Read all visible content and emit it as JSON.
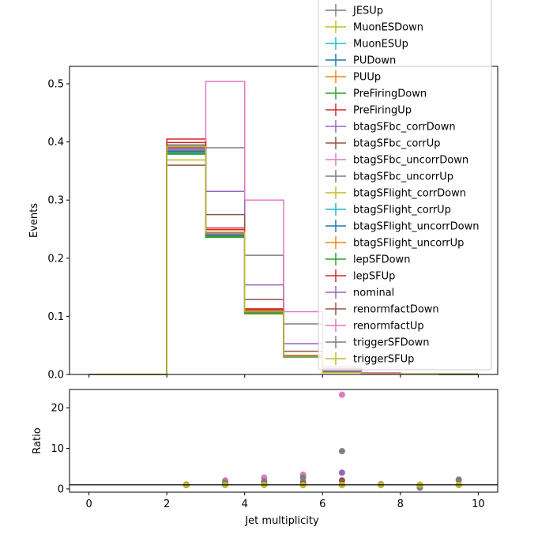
{
  "chart_data": [
    {
      "type": "histogram-step",
      "ylabel": "Events",
      "xlim": [
        -0.5,
        10.5
      ],
      "ylim": [
        0,
        0.53
      ],
      "yticks": [
        "0.0",
        "0.1",
        "0.2",
        "0.3",
        "0.4",
        "0.5"
      ],
      "legend": {
        "placement": "top-right"
      },
      "bin_edges": [
        0,
        1,
        2,
        3,
        4,
        5,
        6,
        7,
        8,
        9,
        10
      ],
      "series": [
        {
          "name": "JESUp",
          "color": "#7f7f7f",
          "values": [
            0,
            0,
            0.395,
            0.39,
            0.205,
            0.087,
            0.01,
            0.003,
            0.001,
            0.001
          ]
        },
        {
          "name": "MuonESDown",
          "color": "#bcbd22",
          "values": [
            0,
            0,
            0.382,
            0.238,
            0.106,
            0.031,
            0.003,
            0.001,
            0.0005,
            0.0002
          ]
        },
        {
          "name": "MuonESUp",
          "color": "#17becf",
          "values": [
            0,
            0,
            0.382,
            0.239,
            0.106,
            0.031,
            0.003,
            0.001,
            0.0005,
            0.0002
          ]
        },
        {
          "name": "PUDown",
          "color": "#1f77b4",
          "values": [
            0,
            0,
            0.383,
            0.239,
            0.107,
            0.031,
            0.003,
            0.001,
            0.0005,
            0.0002
          ]
        },
        {
          "name": "PUUp",
          "color": "#ff7f0e",
          "values": [
            0,
            0,
            0.386,
            0.241,
            0.107,
            0.031,
            0.003,
            0.001,
            0.0005,
            0.0002
          ]
        },
        {
          "name": "PreFiringDown",
          "color": "#2ca02c",
          "values": [
            0,
            0,
            0.38,
            0.237,
            0.105,
            0.03,
            0.003,
            0.001,
            0.0005,
            0.0002
          ]
        },
        {
          "name": "PreFiringUp",
          "color": "#d62728",
          "values": [
            0,
            0,
            0.405,
            0.252,
            0.113,
            0.033,
            0.003,
            0.001,
            0.0005,
            0.0002
          ]
        },
        {
          "name": "btagSFbc_corrDown",
          "color": "#9467bd",
          "values": [
            0,
            0,
            0.384,
            0.315,
            0.154,
            0.053,
            0.006,
            0.002,
            0.0005,
            0.0002
          ]
        },
        {
          "name": "btagSFbc_corrUp",
          "color": "#8c564b",
          "values": [
            0,
            0,
            0.36,
            0.275,
            0.129,
            0.04,
            0.004,
            0.001,
            0.0005,
            0.0002
          ]
        },
        {
          "name": "btagSFbc_uncorrDown",
          "color": "#e377c2",
          "values": [
            0,
            0,
            0.39,
            0.504,
            0.3,
            0.108,
            0.013,
            0.003,
            0.001,
            0.0002
          ]
        },
        {
          "name": "btagSFbc_uncorrUp",
          "color": "#7f7f7f",
          "values": [
            0,
            0,
            0.394,
            0.244,
            0.109,
            0.032,
            0.003,
            0.001,
            0.0005,
            0.0002
          ]
        },
        {
          "name": "btagSFlight_corrDown",
          "color": "#bcbd22",
          "values": [
            0,
            0,
            0.369,
            0.236,
            0.104,
            0.03,
            0.003,
            0.001,
            0.0005,
            0.0002
          ]
        },
        {
          "name": "btagSFlight_corrUp",
          "color": "#17becf",
          "values": [
            0,
            0,
            0.385,
            0.24,
            0.107,
            0.031,
            0.003,
            0.001,
            0.0005,
            0.0002
          ]
        },
        {
          "name": "btagSFlight_uncorrDown",
          "color": "#1f77b4",
          "values": [
            0,
            0,
            0.384,
            0.239,
            0.107,
            0.031,
            0.003,
            0.001,
            0.0005,
            0.0002
          ]
        },
        {
          "name": "btagSFlight_uncorrUp",
          "color": "#ff7f0e",
          "values": [
            0,
            0,
            0.386,
            0.241,
            0.108,
            0.031,
            0.003,
            0.001,
            0.0005,
            0.0002
          ]
        },
        {
          "name": "lepSFDown",
          "color": "#2ca02c",
          "values": [
            0,
            0,
            0.379,
            0.236,
            0.105,
            0.03,
            0.003,
            0.001,
            0.0005,
            0.0002
          ]
        },
        {
          "name": "lepSFUp",
          "color": "#d62728",
          "values": [
            0,
            0,
            0.399,
            0.249,
            0.111,
            0.032,
            0.003,
            0.001,
            0.0005,
            0.0002
          ]
        },
        {
          "name": "nominal",
          "color": "#9467bd",
          "values": [
            0,
            0,
            0.389,
            0.243,
            0.108,
            0.031,
            0.003,
            0.001,
            0.0005,
            0.0002
          ]
        },
        {
          "name": "renormfactDown",
          "color": "#8c564b",
          "values": [
            0,
            0,
            0.391,
            0.244,
            0.109,
            0.031,
            0.003,
            0.001,
            0.0005,
            0.0002
          ]
        },
        {
          "name": "renormfactUp",
          "color": "#e377c2",
          "values": [
            0,
            0,
            0.387,
            0.242,
            0.108,
            0.031,
            0.003,
            0.001,
            0.0005,
            0.0002
          ]
        },
        {
          "name": "triggerSFDown",
          "color": "#7f7f7f",
          "values": [
            0,
            0,
            0.386,
            0.241,
            0.107,
            0.031,
            0.003,
            0.001,
            0.0005,
            0.0002
          ]
        },
        {
          "name": "triggerSFUp",
          "color": "#bcbd22",
          "values": [
            0,
            0,
            0.392,
            0.245,
            0.109,
            0.032,
            0.003,
            0.001,
            0.0005,
            0.0002
          ]
        }
      ]
    },
    {
      "type": "scatter",
      "xlabel": "Jet multiplicity",
      "ylabel": "Ratio",
      "xlim": [
        -0.5,
        10.5
      ],
      "ylim": [
        -0.8,
        24.5
      ],
      "xticks": [
        "0",
        "2",
        "4",
        "6",
        "8",
        "10"
      ],
      "yticks": [
        "0",
        "10",
        "20"
      ],
      "reference_line_y": 1,
      "x": [
        2.5,
        3.5,
        4.5,
        5.5,
        6.5,
        7.5,
        8.5,
        9.5
      ],
      "series": [
        {
          "color": "#9467bd",
          "values": [
            1.0,
            1.3,
            1.4,
            1.7,
            4.0,
            1.0,
            1.0,
            1.0
          ]
        },
        {
          "color": "#8c564b",
          "values": [
            0.93,
            1.1,
            1.2,
            1.3,
            2.1,
            1.0,
            0.9,
            2.2
          ]
        },
        {
          "color": "#e377c2",
          "values": [
            1.0,
            2.1,
            2.8,
            3.5,
            23.2,
            1.2,
            1.0,
            1.0
          ]
        },
        {
          "color": "#7f7f7f",
          "values": [
            1.0,
            1.6,
            1.9,
            2.8,
            9.3,
            1.0,
            0.3,
            2.3
          ]
        },
        {
          "color": "#d62728",
          "values": [
            1.04,
            1.04,
            1.04,
            1.05,
            1.05,
            1.0,
            1.0,
            1.0
          ]
        },
        {
          "color": "#2ca02c",
          "values": [
            0.98,
            0.98,
            0.98,
            0.97,
            0.97,
            1.0,
            1.0,
            1.0
          ]
        },
        {
          "color": "#bcbd22",
          "values": [
            0.95,
            0.97,
            0.97,
            0.97,
            0.97,
            1.0,
            1.0,
            1.0
          ]
        }
      ]
    }
  ]
}
